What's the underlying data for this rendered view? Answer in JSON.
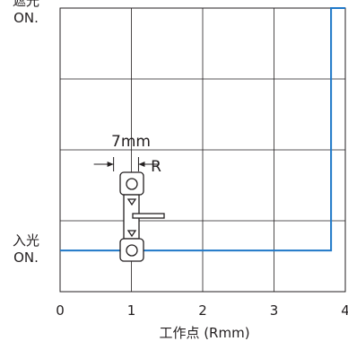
{
  "chart_data": {
    "type": "line",
    "xlabel": "工作点 (Rmm)",
    "x_ticks": [
      "0",
      "1",
      "2",
      "3",
      "4"
    ],
    "xlim": [
      0,
      4
    ],
    "y_states": [
      {
        "line1": "入光",
        "line2": "ON.",
        "value": 0
      },
      {
        "line1": "遮光",
        "line2": "ON.",
        "value": 1
      }
    ],
    "ylim": [
      -0.17,
      1.0
    ],
    "grid": true,
    "series": [
      {
        "color": "#1f78c8",
        "points": [
          [
            0,
            0
          ],
          [
            3.8,
            0
          ],
          [
            3.8,
            1
          ],
          [
            4,
            1
          ]
        ]
      }
    ],
    "annotation": {
      "dimension_label": "7mm",
      "direction_label": "R",
      "dimension_x_range": [
        0.75,
        1.1
      ]
    },
    "colors": {
      "grid": "#231f20",
      "series": "#1f78c8"
    }
  }
}
